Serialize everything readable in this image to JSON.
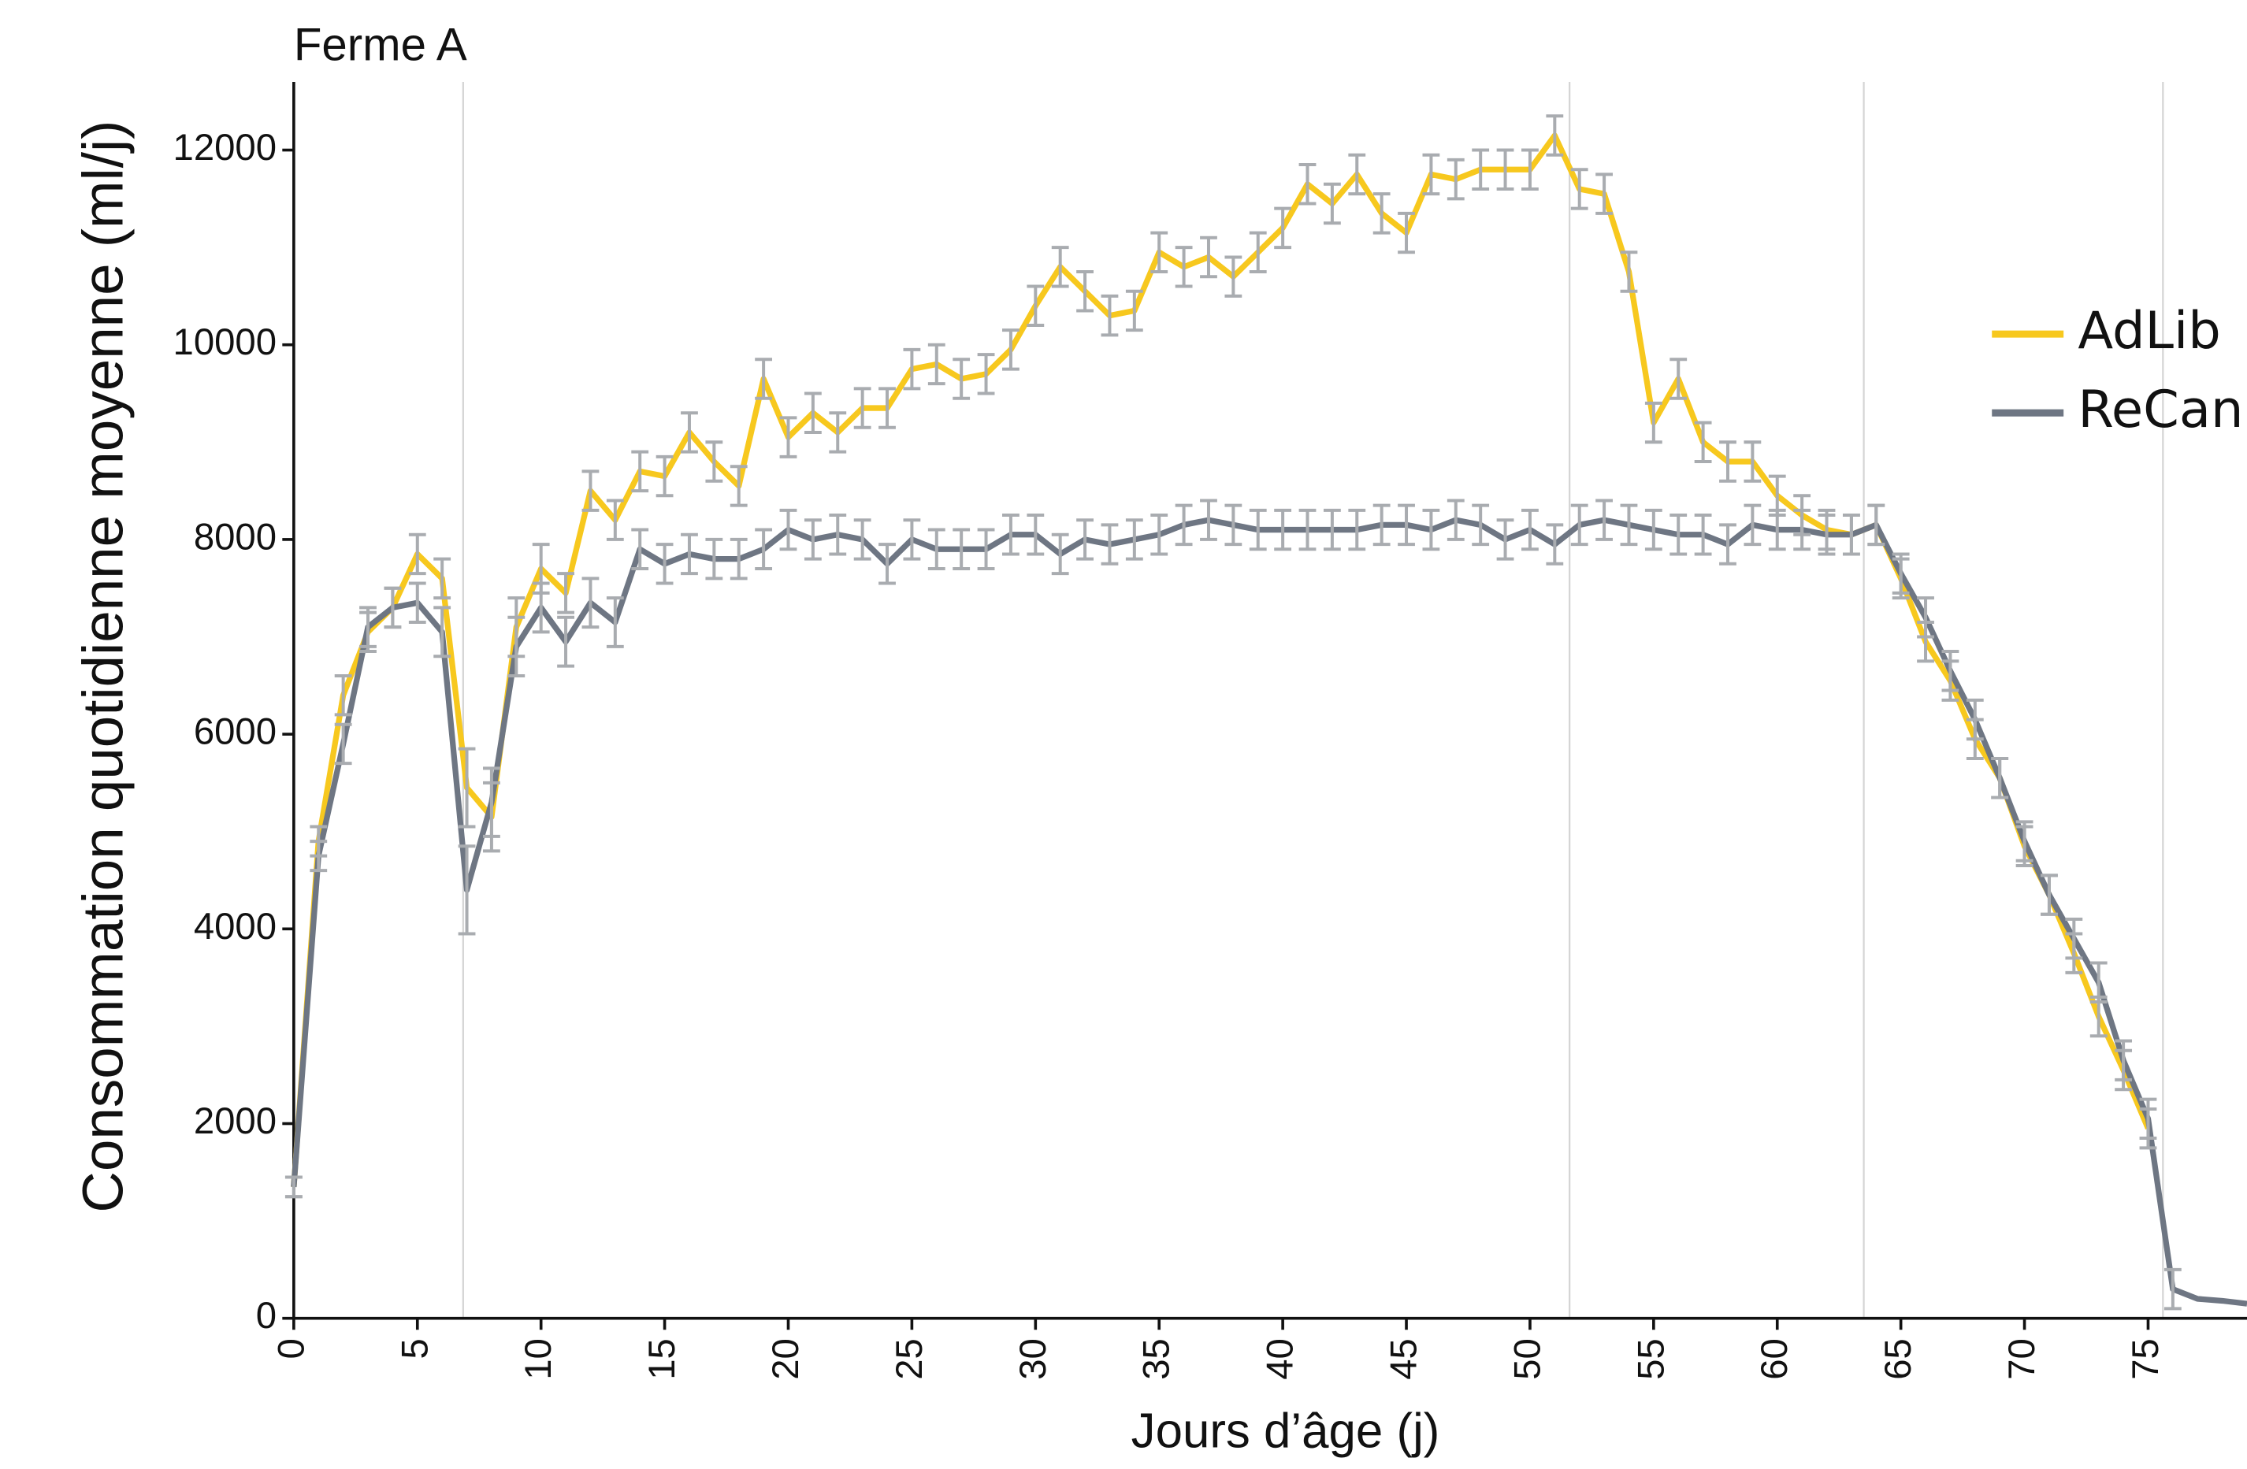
{
  "chart_data": {
    "type": "line",
    "title": "Ferme A",
    "x_label": "Jours d’âge (j)",
    "y_label": "Consommation quotidienne moyenne (ml/j)",
    "x": [
      0,
      1,
      2,
      3,
      4,
      5,
      6,
      7,
      8,
      9,
      10,
      11,
      12,
      13,
      14,
      15,
      16,
      17,
      18,
      19,
      20,
      21,
      22,
      23,
      24,
      25,
      26,
      27,
      28,
      29,
      30,
      31,
      32,
      33,
      34,
      35,
      36,
      37,
      38,
      39,
      40,
      41,
      42,
      43,
      44,
      45,
      46,
      47,
      48,
      49,
      50,
      51,
      52,
      53,
      54,
      55,
      56,
      57,
      58,
      59,
      60,
      61,
      62,
      63,
      64,
      65,
      66,
      67,
      68,
      69,
      70,
      71,
      72,
      73,
      74,
      75,
      76,
      77,
      78,
      79
    ],
    "series": [
      {
        "name": "AdLib",
        "color": "#f7c81e",
        "values": [
          1350,
          4900,
          6400,
          7050,
          7300,
          7850,
          7600,
          5450,
          5150,
          7100,
          7700,
          7450,
          8500,
          8200,
          8700,
          8650,
          9100,
          8800,
          8550,
          9650,
          9050,
          9300,
          9100,
          9350,
          9350,
          9750,
          9800,
          9650,
          9700,
          9950,
          10400,
          10800,
          10550,
          10300,
          10350,
          10950,
          10800,
          10900,
          10700,
          10950,
          11200,
          11650,
          11450,
          11750,
          11350,
          11150,
          11750,
          11700,
          11800,
          11800,
          11800,
          12150,
          11600,
          11550,
          10750,
          9200,
          9650,
          9000,
          8800,
          8800,
          8450,
          8250,
          8100,
          8050,
          8150,
          7600,
          6950,
          6550,
          5950,
          5550,
          4850,
          4350,
          3750,
          3100,
          2550,
          1950,
          null,
          null,
          null,
          null
        ],
        "errors": [
          100,
          150,
          200,
          200,
          200,
          200,
          200,
          400,
          350,
          300,
          250,
          200,
          200,
          200,
          200,
          200,
          200,
          200,
          200,
          200,
          200,
          200,
          200,
          200,
          200,
          200,
          200,
          200,
          200,
          200,
          200,
          200,
          200,
          200,
          200,
          200,
          200,
          200,
          200,
          200,
          200,
          200,
          200,
          200,
          200,
          200,
          200,
          200,
          200,
          200,
          200,
          200,
          200,
          200,
          200,
          200,
          200,
          200,
          200,
          200,
          200,
          200,
          200,
          200,
          200,
          200,
          200,
          200,
          200,
          200,
          200,
          200,
          200,
          200,
          200,
          200,
          null,
          null,
          null,
          null
        ]
      },
      {
        "name": "ReCan",
        "color": "#6e7683",
        "values": [
          1350,
          4750,
          5900,
          7100,
          7300,
          7350,
          7050,
          4400,
          5300,
          6900,
          7300,
          6950,
          7350,
          7150,
          7900,
          7750,
          7850,
          7800,
          7800,
          7900,
          8100,
          8000,
          8050,
          8000,
          7750,
          8000,
          7900,
          7900,
          7900,
          8050,
          8050,
          7850,
          8000,
          7950,
          8000,
          8050,
          8150,
          8200,
          8150,
          8100,
          8100,
          8100,
          8100,
          8100,
          8150,
          8150,
          8100,
          8200,
          8150,
          8000,
          8100,
          7950,
          8150,
          8200,
          8150,
          8100,
          8050,
          8050,
          7950,
          8150,
          8100,
          8100,
          8050,
          8050,
          8150,
          7650,
          7200,
          6650,
          6150,
          5550,
          4900,
          4350,
          3900,
          3450,
          2650,
          2050,
          300,
          200,
          180,
          150
        ],
        "errors": [
          100,
          150,
          200,
          200,
          200,
          200,
          250,
          450,
          350,
          300,
          250,
          250,
          250,
          250,
          200,
          200,
          200,
          200,
          200,
          200,
          200,
          200,
          200,
          200,
          200,
          200,
          200,
          200,
          200,
          200,
          200,
          200,
          200,
          200,
          200,
          200,
          200,
          200,
          200,
          200,
          200,
          200,
          200,
          200,
          200,
          200,
          200,
          200,
          200,
          200,
          200,
          200,
          200,
          200,
          200,
          200,
          200,
          200,
          200,
          200,
          200,
          200,
          200,
          200,
          200,
          200,
          200,
          200,
          200,
          200,
          200,
          200,
          200,
          200,
          200,
          200,
          200,
          null,
          null,
          null
        ]
      }
    ],
    "xlim": [
      0,
      79
    ],
    "ylim": [
      0,
      12700
    ],
    "xticks": [
      0,
      5,
      10,
      15,
      20,
      25,
      30,
      35,
      40,
      45,
      50,
      55,
      60,
      65,
      70,
      75
    ],
    "yticks": [
      0,
      2000,
      4000,
      6000,
      8000,
      10000,
      12000
    ],
    "vlines": [
      6.85,
      51.6,
      63.5,
      75.6
    ],
    "error_color": "#a9acb0",
    "legend": "right"
  }
}
